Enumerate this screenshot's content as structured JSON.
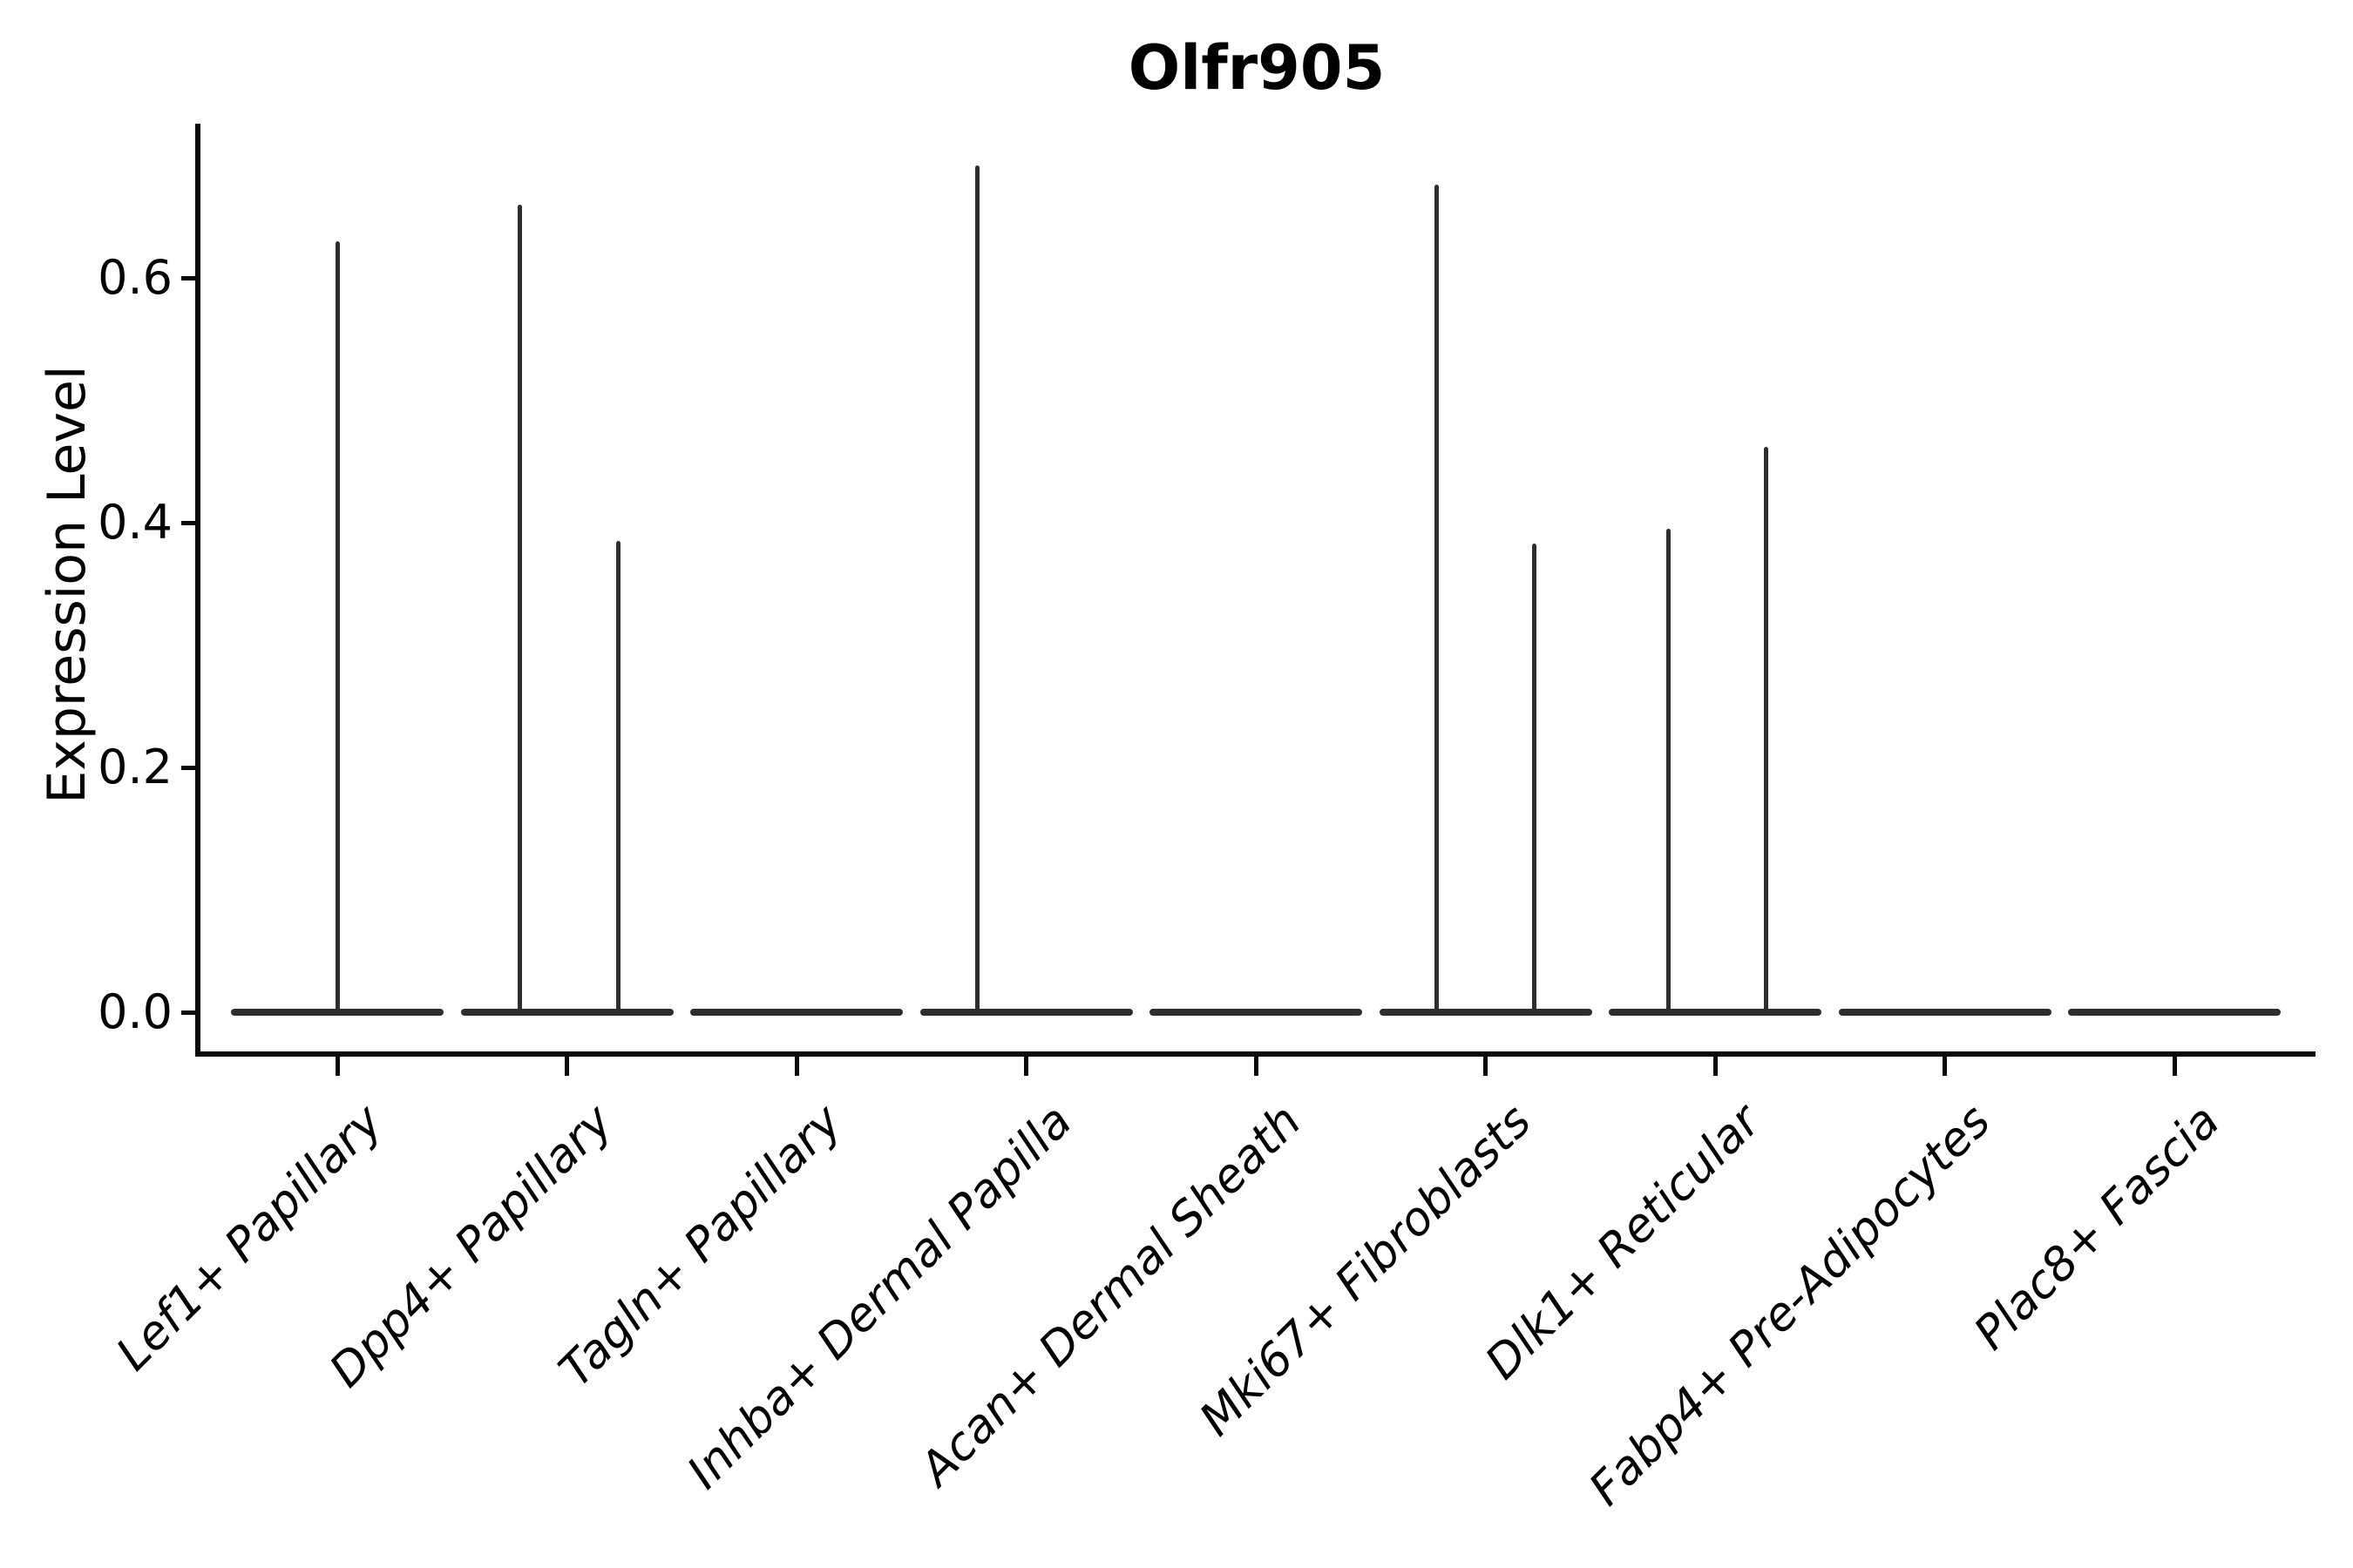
{
  "title": "Olfr905",
  "y_axis": {
    "label": "Expression Level",
    "tick_labels": [
      "0.0",
      "0.2",
      "0.4",
      "0.6"
    ],
    "tick_values": [
      0.0,
      0.2,
      0.4,
      0.6
    ]
  },
  "x_axis": {
    "categories": [
      "Lef1+ Papillary",
      "Dpp4+ Papillary",
      "Tagln+ Papillary",
      "Inhba+ Dermal Papilla",
      "Acan+ Dermal Sheath",
      "Mki67+ Fibroblasts",
      "Dlk1+ Reticular",
      "Fabp4+ Pre-Adipocytes",
      "Plac8+ Fascia"
    ]
  },
  "colors": {
    "violin": "#2e2e2e",
    "axis": "#0a0a0a",
    "text": "#000000",
    "background": "#ffffff"
  },
  "chart_data": {
    "type": "violin",
    "title": "Olfr905",
    "xlabel": "",
    "ylabel": "Expression Level",
    "ylim": [
      0,
      0.73
    ],
    "yticks": [
      0.0,
      0.2,
      0.4,
      0.6
    ],
    "grid": false,
    "legend": "none",
    "categories": [
      "Lef1+ Papillary",
      "Dpp4+ Papillary",
      "Tagln+ Papillary",
      "Inhba+ Dermal Papilla",
      "Acan+ Dermal Sheath",
      "Mki67+ Fibroblasts",
      "Dlk1+ Reticular",
      "Fabp4+ Pre-Adipocytes",
      "Plac8+ Fascia"
    ],
    "description": "Flat violin bodies at expression 0 for all categories; narrow density spikes mark rare expressing cells",
    "violins": [
      {
        "category": "Lef1+ Papillary",
        "baseline_value": 0.0,
        "spikes": [
          {
            "offset_frac": 0.0,
            "peak": 0.63
          }
        ]
      },
      {
        "category": "Dpp4+ Papillary",
        "baseline_value": 0.0,
        "spikes": [
          {
            "offset_frac": -0.22,
            "peak": 0.66
          },
          {
            "offset_frac": 0.24,
            "peak": 0.385
          }
        ]
      },
      {
        "category": "Tagln+ Papillary",
        "baseline_value": 0.0,
        "spikes": []
      },
      {
        "category": "Inhba+ Dermal Papilla",
        "baseline_value": 0.0,
        "spikes": [
          {
            "offset_frac": -0.23,
            "peak": 0.692
          }
        ]
      },
      {
        "category": "Acan+ Dermal Sheath",
        "baseline_value": 0.0,
        "spikes": []
      },
      {
        "category": "Mki67+ Fibroblasts",
        "baseline_value": 0.0,
        "spikes": [
          {
            "offset_frac": -0.23,
            "peak": 0.676
          },
          {
            "offset_frac": 0.23,
            "peak": 0.383
          }
        ]
      },
      {
        "category": "Dlk1+ Reticular",
        "baseline_value": 0.0,
        "spikes": [
          {
            "offset_frac": -0.22,
            "peak": 0.395
          },
          {
            "offset_frac": 0.24,
            "peak": 0.462
          }
        ]
      },
      {
        "category": "Fabp4+ Pre-Adipocytes",
        "baseline_value": 0.0,
        "spikes": []
      },
      {
        "category": "Plac8+ Fascia",
        "baseline_value": 0.0,
        "spikes": []
      }
    ]
  }
}
